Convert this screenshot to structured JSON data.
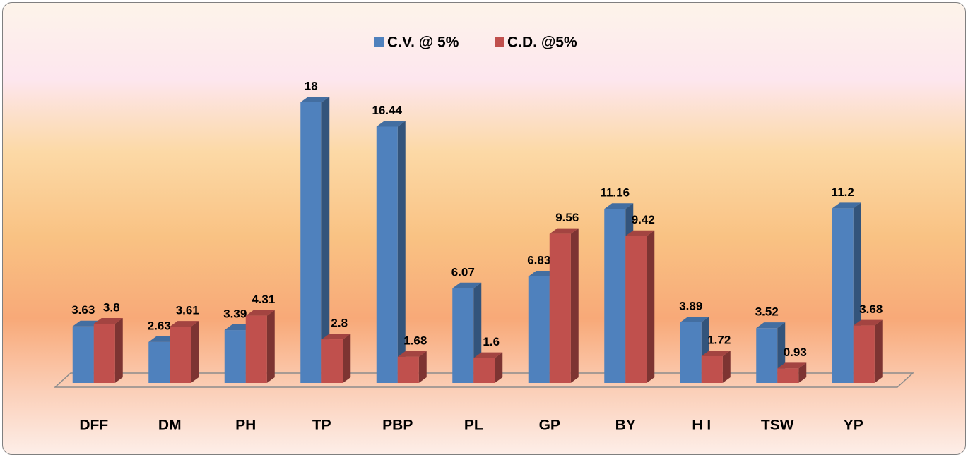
{
  "chart_data": {
    "type": "bar3d",
    "categories": [
      "DFF",
      "DM",
      "PH",
      "TP",
      "PBP",
      "PL",
      "GP",
      "BY",
      "H I",
      "TSW",
      "YP"
    ],
    "series": [
      {
        "name": "C.V. @ 5%",
        "color": "#4f81bd",
        "values": [
          3.63,
          2.63,
          3.39,
          18,
          16.44,
          6.07,
          6.83,
          11.16,
          3.89,
          3.52,
          11.2
        ]
      },
      {
        "name": "C.D. @5%",
        "color": "#c0504d",
        "values": [
          3.8,
          3.61,
          4.31,
          2.8,
          1.68,
          1.6,
          9.56,
          9.42,
          1.72,
          0.93,
          3.68
        ]
      }
    ],
    "legend": "top"
  }
}
